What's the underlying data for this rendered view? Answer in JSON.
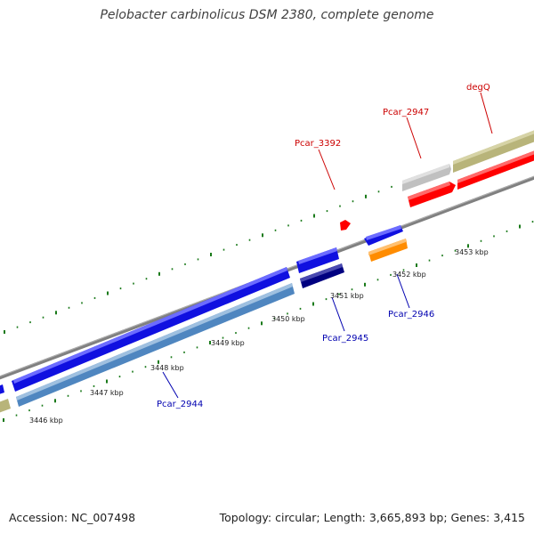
{
  "title": "Pelobacter carbinolicus DSM 2380, complete genome",
  "footer": {
    "accession": "Accession: NC_007498",
    "summary": "Topology: circular; Length: 3,665,893 bp; Genes: 3,415"
  },
  "kbp_labels": [
    "3446 kbp",
    "3447 kbp",
    "3448 kbp",
    "3449 kbp",
    "3450 kbp",
    "3451 kbp",
    "3452 kbp",
    "3453 kbp"
  ],
  "gene_labels": {
    "degQ": "degQ",
    "pcar_2947": "Pcar_2947",
    "pcar_3392": "Pcar_3392",
    "pcar_2946": "Pcar_2946",
    "pcar_2945": "Pcar_2945",
    "pcar_2944": "Pcar_2944"
  },
  "colors": {
    "forward_label": "#cc0000",
    "reverse_label": "#0000b0",
    "backbone": "#808080",
    "ticks": "#1a7a1a",
    "cds_blue": "#1010e0",
    "cds_steel": "#4f86c0",
    "cds_navy": "#000080",
    "cds_orange": "#ff8c00",
    "cds_red": "#ff0000",
    "cds_khaki": "#b8b47a",
    "cds_gray": "#c0c0c0"
  }
}
